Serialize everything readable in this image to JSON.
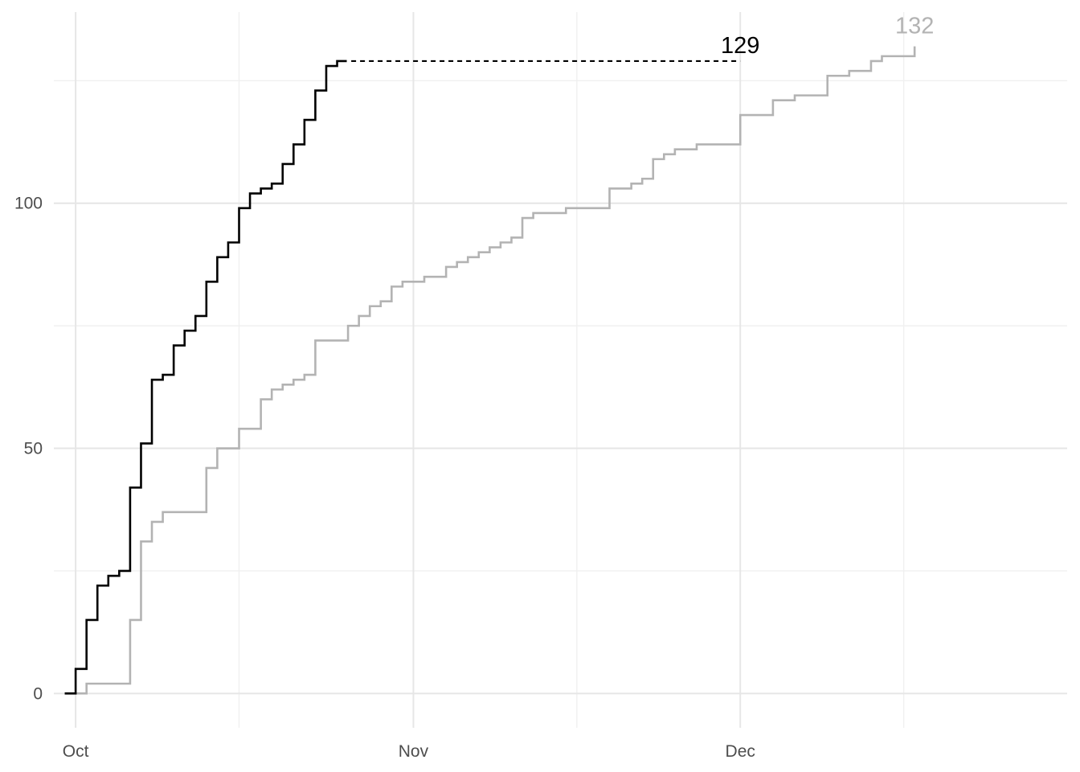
{
  "chart_data": {
    "type": "line",
    "step": true,
    "title": "",
    "xlabel": "",
    "ylabel": "",
    "x_axis": {
      "type": "date",
      "range": [
        "2018-09-29",
        "2018-12-31"
      ],
      "ticks": [
        {
          "date": "2018-10-01",
          "label": "Oct"
        },
        {
          "date": "2018-11-01",
          "label": "Nov"
        },
        {
          "date": "2018-12-01",
          "label": "Dec"
        }
      ],
      "minor_ticks": [
        "2018-10-16",
        "2018-11-16",
        "2018-12-16"
      ]
    },
    "y_axis": {
      "range": [
        -7,
        139
      ],
      "ticks": [
        0,
        50,
        100
      ],
      "minor_ticks": [
        25,
        75,
        125
      ]
    },
    "grid": true,
    "legend": "none",
    "series": [
      {
        "color": "#000000",
        "end_label": "129",
        "extension": {
          "from": "2018-10-26",
          "to": "2018-12-01",
          "value": 129,
          "style": "dashed"
        },
        "points": [
          [
            "2018-09-30",
            0
          ],
          [
            "2018-10-01",
            5
          ],
          [
            "2018-10-02",
            15
          ],
          [
            "2018-10-03",
            22
          ],
          [
            "2018-10-04",
            24
          ],
          [
            "2018-10-05",
            25
          ],
          [
            "2018-10-06",
            42
          ],
          [
            "2018-10-07",
            51
          ],
          [
            "2018-10-08",
            64
          ],
          [
            "2018-10-09",
            65
          ],
          [
            "2018-10-10",
            71
          ],
          [
            "2018-10-11",
            74
          ],
          [
            "2018-10-12",
            77
          ],
          [
            "2018-10-13",
            84
          ],
          [
            "2018-10-14",
            89
          ],
          [
            "2018-10-15",
            92
          ],
          [
            "2018-10-16",
            99
          ],
          [
            "2018-10-17",
            102
          ],
          [
            "2018-10-18",
            103
          ],
          [
            "2018-10-19",
            104
          ],
          [
            "2018-10-20",
            108
          ],
          [
            "2018-10-21",
            112
          ],
          [
            "2018-10-22",
            117
          ],
          [
            "2018-10-23",
            123
          ],
          [
            "2018-10-24",
            128
          ],
          [
            "2018-10-25",
            129
          ]
        ]
      },
      {
        "color": "#b3b3b3",
        "end_label": "132",
        "points": [
          [
            "2018-09-30",
            0
          ],
          [
            "2018-10-02",
            2
          ],
          [
            "2018-10-06",
            15
          ],
          [
            "2018-10-07",
            31
          ],
          [
            "2018-10-08",
            35
          ],
          [
            "2018-10-09",
            37
          ],
          [
            "2018-10-13",
            46
          ],
          [
            "2018-10-14",
            50
          ],
          [
            "2018-10-16",
            54
          ],
          [
            "2018-10-18",
            60
          ],
          [
            "2018-10-19",
            62
          ],
          [
            "2018-10-20",
            63
          ],
          [
            "2018-10-21",
            64
          ],
          [
            "2018-10-22",
            65
          ],
          [
            "2018-10-23",
            72
          ],
          [
            "2018-10-26",
            75
          ],
          [
            "2018-10-27",
            77
          ],
          [
            "2018-10-28",
            79
          ],
          [
            "2018-10-29",
            80
          ],
          [
            "2018-10-30",
            83
          ],
          [
            "2018-10-31",
            84
          ],
          [
            "2018-11-02",
            85
          ],
          [
            "2018-11-04",
            87
          ],
          [
            "2018-11-05",
            88
          ],
          [
            "2018-11-06",
            89
          ],
          [
            "2018-11-07",
            90
          ],
          [
            "2018-11-08",
            91
          ],
          [
            "2018-11-09",
            92
          ],
          [
            "2018-11-10",
            93
          ],
          [
            "2018-11-11",
            97
          ],
          [
            "2018-11-12",
            98
          ],
          [
            "2018-11-15",
            99
          ],
          [
            "2018-11-19",
            103
          ],
          [
            "2018-11-21",
            104
          ],
          [
            "2018-11-22",
            105
          ],
          [
            "2018-11-23",
            109
          ],
          [
            "2018-11-24",
            110
          ],
          [
            "2018-11-25",
            111
          ],
          [
            "2018-11-27",
            112
          ],
          [
            "2018-12-01",
            118
          ],
          [
            "2018-12-04",
            121
          ],
          [
            "2018-12-06",
            122
          ],
          [
            "2018-12-09",
            126
          ],
          [
            "2018-12-11",
            127
          ],
          [
            "2018-12-13",
            129
          ],
          [
            "2018-12-14",
            130
          ],
          [
            "2018-12-17",
            132
          ]
        ]
      }
    ]
  }
}
